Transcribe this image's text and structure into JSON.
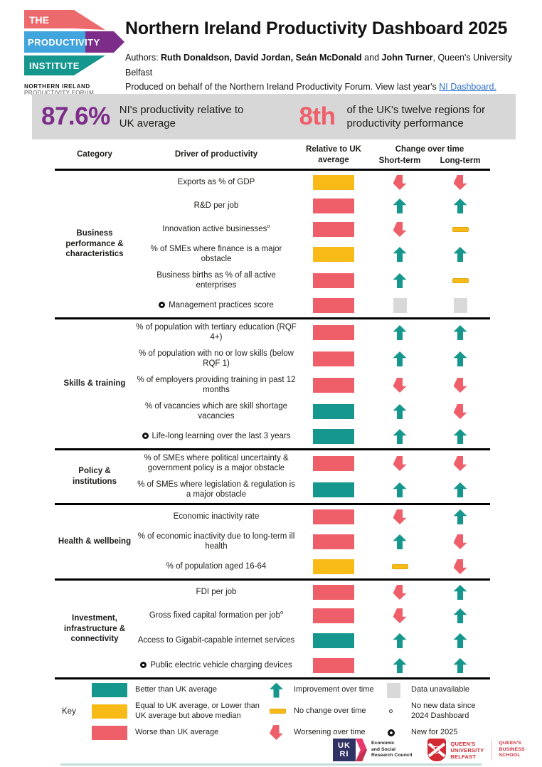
{
  "header": {
    "logo": {
      "line1": "THE",
      "line2": "PRODUCTIVITY",
      "line3": "INSTITUTE",
      "forum_line1": "NORTHERN IRELAND",
      "forum_line2": "PRODUCTIVITY FORUM"
    },
    "title": "Northern Ireland Productivity Dashboard 2025",
    "authors_prefix": "Authors: ",
    "authors_bold1": "Ruth Donaldson, David Jordan, Seán McDonald",
    "authors_mid": " and ",
    "authors_bold2": "John Turner",
    "authors_suffix": ", Queen's University Belfast",
    "produced_text": "Produced on behalf of the Northern Ireland Productivity Forum. View last year's ",
    "produced_link": "NI Dashboard."
  },
  "banner": {
    "stat1_value": "87.6%",
    "stat1_label": "NI's productivity relative to UK average",
    "stat2_value": "8th",
    "stat2_label": "of the UK's twelve regions for productivity performance"
  },
  "table": {
    "headers": {
      "category": "Category",
      "driver": "Driver of productivity",
      "relative": "Relative to UK average",
      "change": "Change over time",
      "short": "Short-term",
      "long": "Long-term"
    },
    "sections": [
      {
        "category": "Business performance & characteristics",
        "rows": [
          {
            "driver": "Exports as % of GDP",
            "marker": "none",
            "box": "yellow",
            "short": "down",
            "long": "down"
          },
          {
            "driver": "R&D per job",
            "marker": "none",
            "box": "red",
            "short": "up",
            "long": "up"
          },
          {
            "driver": "Innovation active businesses",
            "marker": "sup",
            "box": "red",
            "short": "down",
            "long": "dash"
          },
          {
            "driver": "% of SMEs where finance is a major obstacle",
            "marker": "none",
            "box": "yellow",
            "short": "up",
            "long": "up"
          },
          {
            "driver": "Business births as % of all active enterprises",
            "marker": "none",
            "box": "red",
            "short": "up",
            "long": "dash"
          },
          {
            "driver": "Management practices score",
            "marker": "new",
            "box": "red",
            "short": "na",
            "long": "na"
          }
        ]
      },
      {
        "category": "Skills & training",
        "rows": [
          {
            "driver": "% of population with tertiary education (RQF 4+)",
            "marker": "none",
            "box": "red",
            "short": "up",
            "long": "up"
          },
          {
            "driver": "% of population with no or low skills (below RQF 1)",
            "marker": "none",
            "box": "red",
            "short": "up",
            "long": "up"
          },
          {
            "driver": "% of employers providing training in past 12 months",
            "marker": "none",
            "box": "red",
            "short": "down",
            "long": "down"
          },
          {
            "driver": "% of vacancies which are skill shortage vacancies",
            "marker": "none",
            "box": "teal",
            "short": "up",
            "long": "down"
          },
          {
            "driver": "Life-long learning over the last 3 years",
            "marker": "new",
            "box": "teal",
            "short": "up",
            "long": "up"
          }
        ]
      },
      {
        "category": "Policy & institutions",
        "rows": [
          {
            "driver": "% of SMEs where political uncertainty & government policy is a major obstacle",
            "marker": "none",
            "box": "red",
            "short": "down",
            "long": "down"
          },
          {
            "driver": "% of SMEs where legislation & regulation is a major obstacle",
            "marker": "none",
            "box": "teal",
            "short": "up",
            "long": "up"
          }
        ]
      },
      {
        "category": "Health & wellbeing",
        "rows": [
          {
            "driver": "Economic inactivity rate",
            "marker": "none",
            "box": "red",
            "short": "down",
            "long": "up"
          },
          {
            "driver": "% of economic inactivity due to long-term ill health",
            "marker": "none",
            "box": "red",
            "short": "up",
            "long": "down"
          },
          {
            "driver": "% of population aged 16-64",
            "marker": "none",
            "box": "yellow",
            "short": "dash",
            "long": "down"
          }
        ]
      },
      {
        "category": "Investment, infrastructure & connectivity",
        "rows": [
          {
            "driver": "FDI per job",
            "marker": "none",
            "box": "red",
            "short": "down",
            "long": "up"
          },
          {
            "driver": "Gross fixed capital formation per job",
            "marker": "sup",
            "box": "red",
            "short": "down",
            "long": "up"
          },
          {
            "driver": "Access to Gigabit-capable internet services",
            "marker": "none",
            "box": "teal",
            "short": "up",
            "long": "up"
          },
          {
            "driver": "Public electric vehicle charging devices",
            "marker": "new",
            "box": "red",
            "short": "up",
            "long": "up"
          }
        ]
      }
    ]
  },
  "key": {
    "label": "Key",
    "swatches": [
      {
        "color": "teal",
        "label": "Better than UK average"
      },
      {
        "color": "yellow",
        "label": "Equal to UK average, or Lower than UK average but above median"
      },
      {
        "color": "red",
        "label": "Worse than UK average"
      }
    ],
    "arrows": [
      {
        "type": "up",
        "label": "Improvement over time"
      },
      {
        "type": "dash",
        "label": "No change over time"
      },
      {
        "type": "down",
        "label": "Worsening over time"
      }
    ],
    "symbols": [
      {
        "type": "na",
        "label": "Data unavailable"
      },
      {
        "type": "nonew",
        "label": "No new data since 2024 Dashboard"
      },
      {
        "type": "new",
        "label": "New for 2025"
      }
    ]
  },
  "footer": {
    "ukri_line1": "UK",
    "ukri_line2": "RI",
    "esrc_lines": [
      "Economic",
      "and Social",
      "Research Council"
    ],
    "qub_lines": [
      "QUEEN'S",
      "UNIVERSITY",
      "BELFAST"
    ],
    "qbs_lines": [
      "QUEEN'S",
      "BUSINESS",
      "SCHOOL"
    ]
  },
  "colors": {
    "better": "#16978e",
    "equal": "#f7ba16",
    "worse": "#ee5f6a",
    "unavailable": "#d9d9d9",
    "accent_purple": "#7c2d89",
    "accent_coral": "#ee5f6a"
  }
}
